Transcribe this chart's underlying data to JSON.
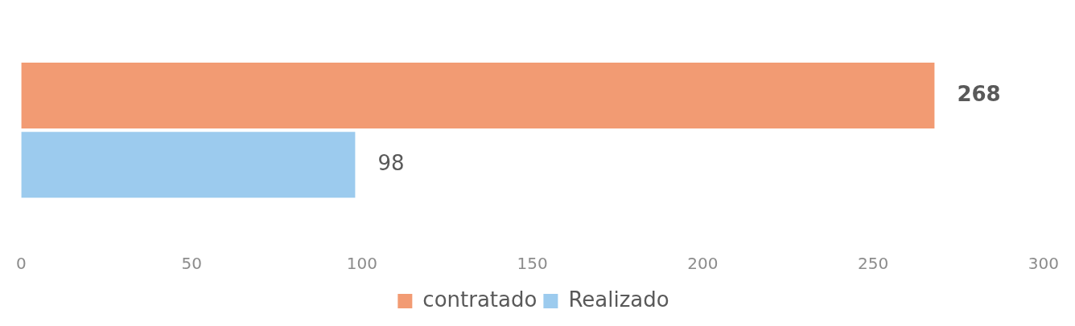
{
  "chart_data": {
    "type": "bar",
    "orientation": "horizontal",
    "categories": [
      null
    ],
    "series": [
      {
        "name": "contratado",
        "color": "#f29b73",
        "values": [
          268
        ]
      },
      {
        "name": "Realizado",
        "color": "#9ccbee",
        "values": [
          98
        ]
      }
    ],
    "xlim": [
      0,
      300
    ],
    "xticks": [
      0,
      50,
      100,
      150,
      200,
      250,
      300
    ],
    "grid": false,
    "legend": "bottom",
    "data_labels": true
  }
}
